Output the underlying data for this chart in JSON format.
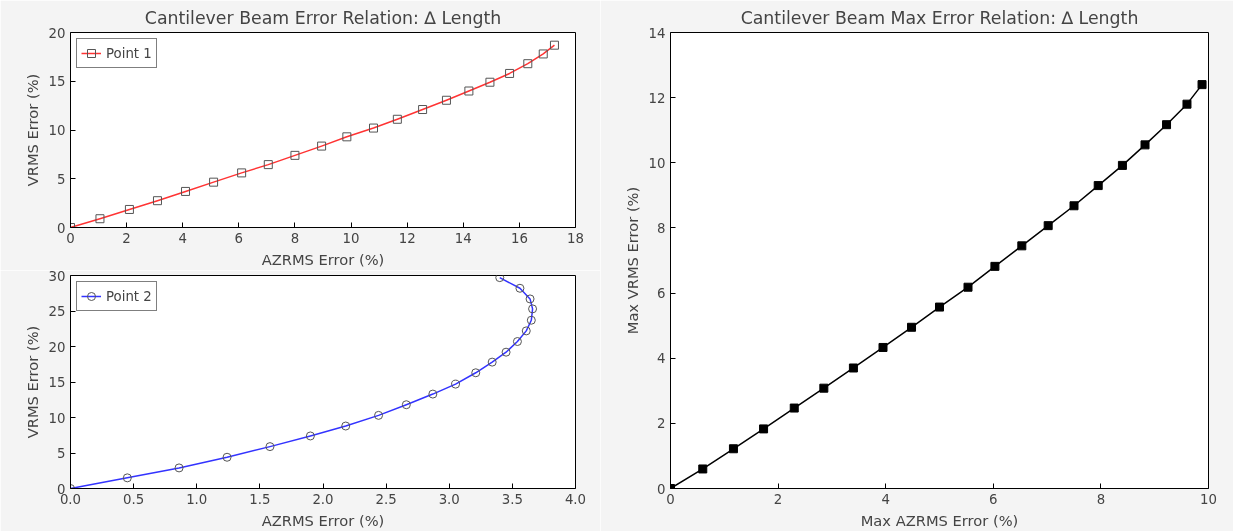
{
  "chart_data": [
    {
      "type": "line",
      "title": "Cantilever Beam Error Relation: ∆ Length",
      "xlabel": "AZRMS Error (%)",
      "ylabel": "VRMS Error (%)",
      "xlim": [
        0,
        18
      ],
      "ylim": [
        0,
        20
      ],
      "xticks": [
        0,
        2,
        4,
        6,
        8,
        10,
        12,
        14,
        16,
        18
      ],
      "yticks": [
        0,
        5,
        10,
        15,
        20
      ],
      "grid": false,
      "legend": "top left",
      "marker": "square",
      "series": [
        {
          "name": "Point 1",
          "color": "#ff3333",
          "x": [
            0,
            1.05,
            2.1,
            3.1,
            4.1,
            5.1,
            6.1,
            7.05,
            8.0,
            8.95,
            9.85,
            10.8,
            11.65,
            12.55,
            13.4,
            14.2,
            14.95,
            15.65,
            16.3,
            16.85,
            17.25
          ],
          "values": [
            0,
            0.9,
            1.85,
            2.75,
            3.7,
            4.65,
            5.6,
            6.45,
            7.4,
            8.35,
            9.3,
            10.2,
            11.1,
            12.1,
            13.05,
            14.0,
            14.9,
            15.8,
            16.8,
            17.8,
            18.7
          ]
        }
      ]
    },
    {
      "type": "line",
      "xlabel": "AZRMS Error (%)",
      "ylabel": "VRMS Error (%)",
      "xlim": [
        0,
        4
      ],
      "ylim": [
        0,
        30
      ],
      "xticks": [
        {
          "value": 0,
          "label": "0.0"
        },
        0.5,
        {
          "value": 1,
          "label": "1.0"
        },
        1.5,
        {
          "value": 2,
          "label": "2.0"
        },
        2.5,
        {
          "value": 3,
          "label": "3.0"
        },
        3.5,
        {
          "value": 4,
          "label": "4.0"
        }
      ],
      "yticks": [
        0,
        5,
        10,
        15,
        20,
        25,
        30
      ],
      "grid": false,
      "legend": "top left",
      "marker": "circle",
      "series": [
        {
          "name": "Point 2",
          "color": "#3333ff",
          "x": [
            0,
            0.45,
            0.86,
            1.24,
            1.58,
            1.9,
            2.18,
            2.44,
            2.66,
            2.87,
            3.05,
            3.21,
            3.34,
            3.45,
            3.54,
            3.61,
            3.65,
            3.66,
            3.64,
            3.56,
            3.4
          ],
          "values": [
            0,
            1.5,
            2.9,
            4.4,
            5.9,
            7.4,
            8.8,
            10.3,
            11.8,
            13.3,
            14.7,
            16.3,
            17.8,
            19.2,
            20.7,
            22.2,
            23.7,
            25.3,
            26.7,
            28.2,
            29.7
          ]
        }
      ]
    },
    {
      "type": "line",
      "title": "Cantilever Beam Max Error Relation: ∆ Length",
      "xlabel": "Max AZRMS Error (%)",
      "ylabel": "Max VRMS Error (%)",
      "xlim": [
        0,
        10
      ],
      "ylim": [
        0,
        14
      ],
      "xticks": [
        0,
        2,
        4,
        6,
        8,
        10
      ],
      "yticks": [
        0,
        2,
        4,
        6,
        8,
        10,
        12,
        14
      ],
      "grid": false,
      "marker": "square",
      "series": [
        {
          "color": "#000000",
          "x": [
            0,
            0.6,
            1.17,
            1.73,
            2.3,
            2.85,
            3.4,
            3.95,
            4.48,
            5.0,
            5.53,
            6.03,
            6.53,
            7.02,
            7.5,
            7.95,
            8.4,
            8.82,
            9.22,
            9.6,
            9.88
          ],
          "values": [
            0,
            0.6,
            1.22,
            1.83,
            2.47,
            3.08,
            3.7,
            4.33,
            4.95,
            5.57,
            6.18,
            6.82,
            7.45,
            8.07,
            8.68,
            9.3,
            9.92,
            10.55,
            11.17,
            11.8,
            12.4
          ]
        }
      ]
    }
  ]
}
